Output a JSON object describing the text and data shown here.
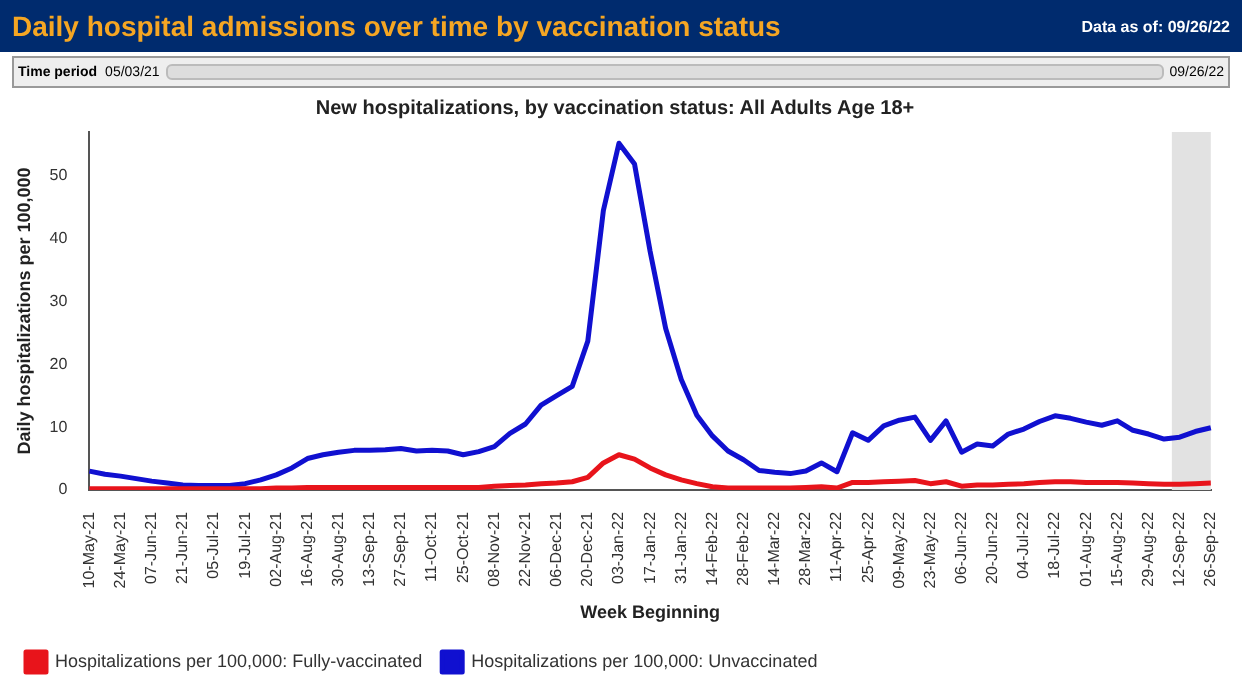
{
  "chart_data": {
    "type": "line",
    "title": "Daily hospital admissions over time by vaccination status",
    "subtitle": "New hospitalizations, by vaccination status: All Adults Age 18+",
    "annotations": [
      "Data as of: 09/26/22",
      "Time period",
      "05/03/21",
      "09/26/22"
    ],
    "xlabel": "Week Beginning",
    "ylabel": "Daily hospitalizations per 100,000",
    "categories": [
      "10-May-21",
      null,
      "24-May-21",
      null,
      "07-Jun-21",
      null,
      "21-Jun-21",
      null,
      "05-Jul-21",
      null,
      "19-Jul-21",
      null,
      "02-Aug-21",
      null,
      "16-Aug-21",
      null,
      "30-Aug-21",
      null,
      "13-Sep-21",
      null,
      "27-Sep-21",
      null,
      "11-Oct-21",
      null,
      "25-Oct-21",
      null,
      "08-Nov-21",
      null,
      "22-Nov-21",
      null,
      "06-Dec-21",
      null,
      "20-Dec-21",
      null,
      "03-Jan-22",
      null,
      "17-Jan-22",
      null,
      "31-Jan-22",
      null,
      "14-Feb-22",
      null,
      "28-Feb-22",
      null,
      "14-Mar-22",
      null,
      "28-Mar-22",
      null,
      "11-Apr-22",
      null,
      "25-Apr-22",
      null,
      "09-May-22",
      null,
      "23-May-22",
      null,
      "06-Jun-22",
      null,
      "20-Jun-22",
      null,
      "04-Jul-22",
      null,
      "18-Jul-22",
      null,
      "01-Aug-22",
      null,
      "15-Aug-22",
      null,
      "29-Aug-22",
      null,
      "12-Sep-22",
      null,
      "26-Sep-22"
    ],
    "series": [
      {
        "name": "Hospitalizations per 100,000: Fully-vaccinated",
        "color": "#e8141b",
        "values": [
          0.2,
          0.2,
          0.2,
          0.2,
          0.2,
          0.2,
          0.2,
          0.2,
          0.2,
          0.2,
          0.2,
          0.2,
          0.3,
          0.3,
          0.4,
          0.4,
          0.4,
          0.4,
          0.4,
          0.4,
          0.4,
          0.4,
          0.4,
          0.4,
          0.4,
          0.4,
          0.6,
          0.7,
          0.8,
          1.0,
          1.1,
          1.3,
          2.0,
          4.3,
          5.6,
          4.9,
          3.5,
          2.4,
          1.6,
          1.0,
          0.5,
          0.3,
          0.3,
          0.3,
          0.3,
          0.3,
          0.4,
          0.5,
          0.3,
          1.2,
          1.2,
          1.3,
          1.4,
          1.5,
          1.0,
          1.3,
          0.6,
          0.8,
          0.8,
          0.9,
          1.0,
          1.2,
          1.3,
          1.3,
          1.2,
          1.2,
          1.2,
          1.1,
          1.0,
          0.9,
          0.9,
          1.0,
          1.1
        ]
      },
      {
        "name": "Hospitalizations per 100,000: Unvaccinated",
        "color": "#1010d0",
        "values": [
          3.0,
          2.5,
          2.2,
          1.8,
          1.4,
          1.1,
          0.8,
          0.7,
          0.7,
          0.7,
          1.0,
          1.6,
          2.4,
          3.5,
          5.0,
          5.6,
          6.0,
          6.3,
          6.3,
          6.4,
          6.6,
          6.2,
          6.3,
          6.2,
          5.6,
          6.1,
          6.9,
          9.0,
          10.5,
          13.5,
          15.0,
          16.5,
          23.7,
          44.5,
          55.2,
          51.9,
          38.0,
          25.7,
          17.6,
          11.9,
          8.6,
          6.2,
          4.8,
          3.1,
          2.8,
          2.6,
          3.0,
          4.3,
          2.9,
          9.1,
          7.9,
          10.2,
          11.1,
          11.6,
          7.9,
          11.0,
          6.0,
          7.3,
          7.0,
          8.9,
          9.7,
          10.9,
          11.8,
          11.4,
          10.8,
          10.3,
          11.0,
          9.5,
          8.9,
          8.1,
          8.4,
          9.3,
          9.9
        ]
      }
    ],
    "bands": [
      {
        "axis": "x",
        "from": "12-Sep-22",
        "to": "26-Sep-22",
        "color": "#e2e2e2"
      }
    ],
    "ylim": [
      0,
      57
    ],
    "yticks": [
      0,
      10,
      20,
      30,
      40,
      50
    ],
    "grid": false,
    "legend": "bottom",
    "marker": "none",
    "line_style": "solid"
  }
}
